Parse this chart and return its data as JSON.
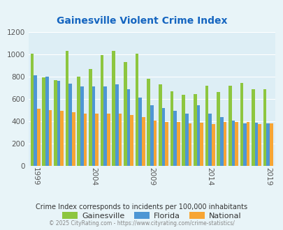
{
  "title": "Gainesville Violent Crime Index",
  "years": [
    1999,
    2000,
    2001,
    2002,
    2003,
    2004,
    2005,
    2006,
    2007,
    2008,
    2009,
    2010,
    2011,
    2012,
    2013,
    2014,
    2015,
    2016,
    2017,
    2018,
    2019
  ],
  "gainesville": [
    1005,
    795,
    770,
    1035,
    800,
    870,
    995,
    1035,
    930,
    1005,
    780,
    730,
    670,
    635,
    645,
    720,
    665,
    720,
    745,
    690,
    690
  ],
  "florida": [
    810,
    800,
    760,
    735,
    710,
    710,
    710,
    730,
    690,
    615,
    545,
    515,
    490,
    465,
    545,
    465,
    435,
    405,
    380,
    385,
    380
  ],
  "national": [
    510,
    500,
    495,
    480,
    465,
    465,
    470,
    465,
    455,
    435,
    405,
    395,
    390,
    380,
    385,
    375,
    395,
    395,
    395,
    375,
    380
  ],
  "gainesville_color": "#8dc63f",
  "florida_color": "#4d96d4",
  "national_color": "#f7a534",
  "background_color": "#e8f4f8",
  "plot_bg_color": "#ddeef5",
  "ylim": [
    0,
    1200
  ],
  "yticks": [
    0,
    200,
    400,
    600,
    800,
    1000,
    1200
  ],
  "xtick_years": [
    1999,
    2004,
    2009,
    2014,
    2019
  ],
  "legend_labels": [
    "Gainesville",
    "Florida",
    "National"
  ],
  "subtitle": "Crime Index corresponds to incidents per 100,000 inhabitants",
  "footer": "© 2025 CityRating.com - https://www.cityrating.com/crime-statistics/",
  "title_color": "#1565c0",
  "subtitle_color": "#333333",
  "footer_color": "#888888",
  "bar_width": 0.28
}
